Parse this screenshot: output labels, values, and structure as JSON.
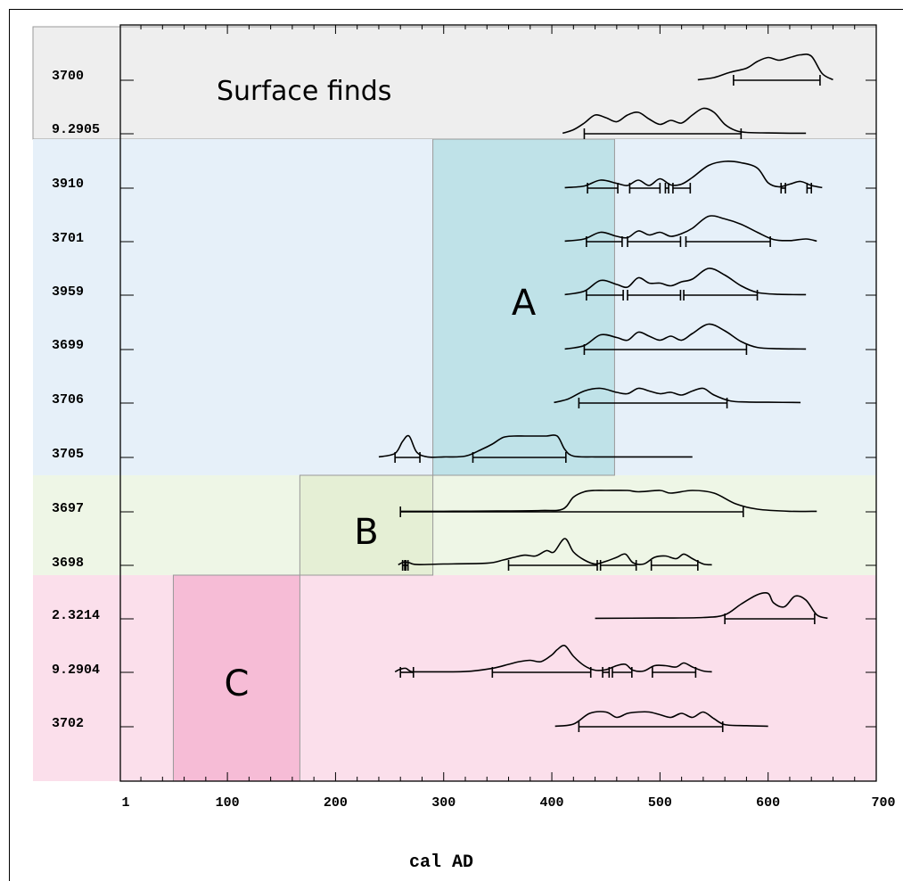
{
  "chart_data": {
    "type": "line",
    "xlabel": "cal AD",
    "xlim": [
      1,
      700
    ],
    "x_ticks": [
      "1",
      "100",
      "200",
      "300",
      "400",
      "500",
      "600",
      "700"
    ],
    "samples": [
      "3700",
      "9.2905",
      "3910",
      "3701",
      "3959",
      "3699",
      "3706",
      "3705",
      "3697",
      "3698",
      "2.3214",
      "9.2904",
      "3702"
    ],
    "groups": [
      {
        "label": "Surface finds",
        "samples": [
          "3700",
          "9.2905"
        ],
        "color": "#eeeeee"
      },
      {
        "label": "A",
        "samples": [
          "3910",
          "3701",
          "3959",
          "3699",
          "3706",
          "3705"
        ],
        "color": "#e6f0f9",
        "highlight_range": [
          290,
          458
        ],
        "highlight_color": "#bfe2e8"
      },
      {
        "label": "B",
        "samples": [
          "3697",
          "3698"
        ],
        "color": "#eef6e6",
        "highlight_range": [
          167,
          290
        ],
        "highlight_color": "#e5efd5"
      },
      {
        "label": "C",
        "samples": [
          "2.3214",
          "9.2904",
          "3702"
        ],
        "color": "#fbdfeb",
        "highlight_range": [
          50,
          167
        ],
        "highlight_color": "#f6bcd6"
      }
    ],
    "series": [
      {
        "sample": "3700",
        "x": [
          535,
          550,
          565,
          580,
          590,
          600,
          610,
          620,
          630,
          640,
          650,
          660
        ],
        "y": [
          0.02,
          0.1,
          0.3,
          0.45,
          0.7,
          0.85,
          0.75,
          0.85,
          0.95,
          0.9,
          0.25,
          0.02
        ],
        "ranges": [
          [
            568,
            648
          ]
        ]
      },
      {
        "sample": "9.2905",
        "x": [
          410,
          420,
          430,
          440,
          450,
          460,
          470,
          480,
          490,
          500,
          510,
          520,
          530,
          540,
          550,
          560,
          570,
          580,
          600,
          620,
          635
        ],
        "y": [
          0.02,
          0.15,
          0.4,
          0.7,
          0.6,
          0.45,
          0.7,
          0.8,
          0.55,
          0.35,
          0.5,
          0.4,
          0.7,
          0.95,
          0.8,
          0.35,
          0.12,
          0.05,
          0.03,
          0.02,
          0.02
        ],
        "ranges": [
          [
            430,
            575
          ]
        ]
      },
      {
        "sample": "3910",
        "x": [
          412,
          430,
          445,
          460,
          470,
          480,
          490,
          500,
          510,
          520,
          530,
          545,
          560,
          575,
          590,
          600,
          610,
          620,
          630,
          640,
          650
        ],
        "y": [
          0.02,
          0.08,
          0.3,
          0.18,
          0.1,
          0.3,
          0.1,
          0.35,
          0.12,
          0.15,
          0.4,
          0.85,
          1.0,
          0.95,
          0.75,
          0.2,
          0.05,
          0.15,
          0.25,
          0.1,
          0.02
        ],
        "ranges": [
          [
            433,
            461
          ],
          [
            472,
            500
          ],
          [
            505,
            508
          ],
          [
            512,
            528
          ],
          [
            612,
            616
          ],
          [
            636,
            640
          ]
        ]
      },
      {
        "sample": "3701",
        "x": [
          412,
          430,
          445,
          460,
          470,
          480,
          490,
          500,
          510,
          520,
          530,
          545,
          560,
          575,
          590,
          605,
          620,
          635,
          645
        ],
        "y": [
          0.02,
          0.1,
          0.35,
          0.2,
          0.15,
          0.4,
          0.25,
          0.35,
          0.2,
          0.3,
          0.5,
          0.95,
          0.85,
          0.65,
          0.35,
          0.08,
          0.04,
          0.1,
          0.02
        ],
        "ranges": [
          [
            432,
            465
          ],
          [
            470,
            519
          ],
          [
            524,
            602
          ]
        ]
      },
      {
        "sample": "3959",
        "x": [
          412,
          430,
          445,
          460,
          470,
          480,
          490,
          500,
          510,
          520,
          530,
          545,
          560,
          575,
          590,
          610,
          635
        ],
        "y": [
          0.02,
          0.15,
          0.55,
          0.4,
          0.3,
          0.65,
          0.45,
          0.45,
          0.35,
          0.5,
          0.6,
          1.0,
          0.75,
          0.35,
          0.1,
          0.03,
          0.02
        ],
        "ranges": [
          [
            432,
            466
          ],
          [
            470,
            519
          ],
          [
            522,
            590
          ]
        ]
      },
      {
        "sample": "3699",
        "x": [
          412,
          430,
          445,
          460,
          470,
          480,
          490,
          500,
          510,
          520,
          530,
          545,
          560,
          575,
          590,
          610,
          635
        ],
        "y": [
          0.02,
          0.15,
          0.55,
          0.45,
          0.35,
          0.65,
          0.5,
          0.35,
          0.5,
          0.35,
          0.6,
          0.95,
          0.7,
          0.3,
          0.08,
          0.03,
          0.02
        ],
        "ranges": [
          [
            430,
            580
          ]
        ]
      },
      {
        "sample": "3706",
        "x": [
          402,
          415,
          430,
          445,
          460,
          470,
          480,
          490,
          500,
          510,
          520,
          530,
          540,
          550,
          565,
          580,
          600,
          630
        ],
        "y": [
          0.02,
          0.15,
          0.45,
          0.55,
          0.4,
          0.35,
          0.55,
          0.45,
          0.35,
          0.4,
          0.3,
          0.45,
          0.55,
          0.3,
          0.08,
          0.04,
          0.03,
          0.02
        ],
        "ranges": [
          [
            425,
            562
          ]
        ]
      },
      {
        "sample": "3705",
        "x": [
          240,
          255,
          262,
          268,
          275,
          285,
          300,
          320,
          335,
          345,
          355,
          365,
          375,
          385,
          395,
          405,
          412,
          420,
          440,
          470,
          530
        ],
        "y": [
          0.02,
          0.15,
          0.6,
          0.8,
          0.2,
          0.02,
          0.02,
          0.05,
          0.3,
          0.5,
          0.75,
          0.8,
          0.8,
          0.8,
          0.8,
          0.8,
          0.3,
          0.05,
          0.02,
          0.02,
          0.02
        ],
        "ranges": [
          [
            255,
            278
          ],
          [
            327,
            413
          ]
        ]
      },
      {
        "sample": "3697",
        "x": [
          260,
          300,
          350,
          390,
          410,
          420,
          430,
          440,
          450,
          470,
          480,
          500,
          510,
          530,
          550,
          570,
          590,
          620,
          645
        ],
        "y": [
          0.02,
          0.02,
          0.03,
          0.05,
          0.1,
          0.55,
          0.75,
          0.8,
          0.8,
          0.8,
          0.75,
          0.8,
          0.7,
          0.8,
          0.7,
          0.3,
          0.1,
          0.02,
          0.02
        ],
        "ranges": [
          [
            260,
            577
          ]
        ]
      },
      {
        "sample": "3698",
        "x": [
          258,
          263,
          268,
          275,
          300,
          340,
          355,
          365,
          375,
          385,
          395,
          402,
          412,
          420,
          430,
          440,
          450,
          460,
          468,
          475,
          485,
          495,
          505,
          515,
          522,
          530,
          540,
          548
        ],
        "y": [
          0.02,
          0.12,
          0.1,
          0.03,
          0.05,
          0.08,
          0.2,
          0.3,
          0.38,
          0.35,
          0.55,
          0.5,
          1.0,
          0.5,
          0.2,
          0.05,
          0.15,
          0.3,
          0.42,
          0.1,
          0.05,
          0.3,
          0.35,
          0.25,
          0.42,
          0.25,
          0.05,
          0.02
        ],
        "ranges": [
          [
            262,
            264
          ],
          [
            265,
            267
          ],
          [
            360,
            442
          ],
          [
            445,
            478
          ],
          [
            492,
            535
          ]
        ]
      },
      {
        "sample": "2.3214",
        "x": [
          440,
          500,
          540,
          560,
          575,
          590,
          600,
          605,
          615,
          625,
          635,
          645,
          655
        ],
        "y": [
          0.02,
          0.03,
          0.05,
          0.15,
          0.55,
          0.9,
          0.95,
          0.6,
          0.45,
          0.85,
          0.7,
          0.15,
          0.02
        ],
        "ranges": [
          [
            560,
            643
          ]
        ]
      },
      {
        "sample": "9.2904",
        "x": [
          255,
          260,
          265,
          270,
          280,
          320,
          345,
          360,
          370,
          380,
          390,
          400,
          405,
          412,
          420,
          430,
          440,
          450,
          460,
          468,
          475,
          485,
          495,
          505,
          515,
          522,
          530,
          540,
          548
        ],
        "y": [
          0.02,
          0.12,
          0.15,
          0.03,
          0.02,
          0.03,
          0.15,
          0.3,
          0.4,
          0.45,
          0.4,
          0.65,
          0.85,
          1.0,
          0.6,
          0.25,
          0.08,
          0.1,
          0.25,
          0.3,
          0.08,
          0.05,
          0.25,
          0.25,
          0.2,
          0.35,
          0.2,
          0.05,
          0.02
        ],
        "ranges": [
          [
            260,
            272
          ],
          [
            345,
            436
          ],
          [
            447,
            453
          ],
          [
            456,
            474
          ],
          [
            493,
            533
          ]
        ]
      },
      {
        "sample": "3702",
        "x": [
          403,
          420,
          435,
          450,
          460,
          470,
          480,
          490,
          500,
          510,
          520,
          530,
          540,
          550,
          560,
          580,
          600
        ],
        "y": [
          0.02,
          0.1,
          0.5,
          0.55,
          0.35,
          0.5,
          0.55,
          0.55,
          0.45,
          0.35,
          0.5,
          0.35,
          0.55,
          0.3,
          0.08,
          0.04,
          0.02
        ],
        "ranges": [
          [
            425,
            558
          ]
        ]
      }
    ]
  }
}
